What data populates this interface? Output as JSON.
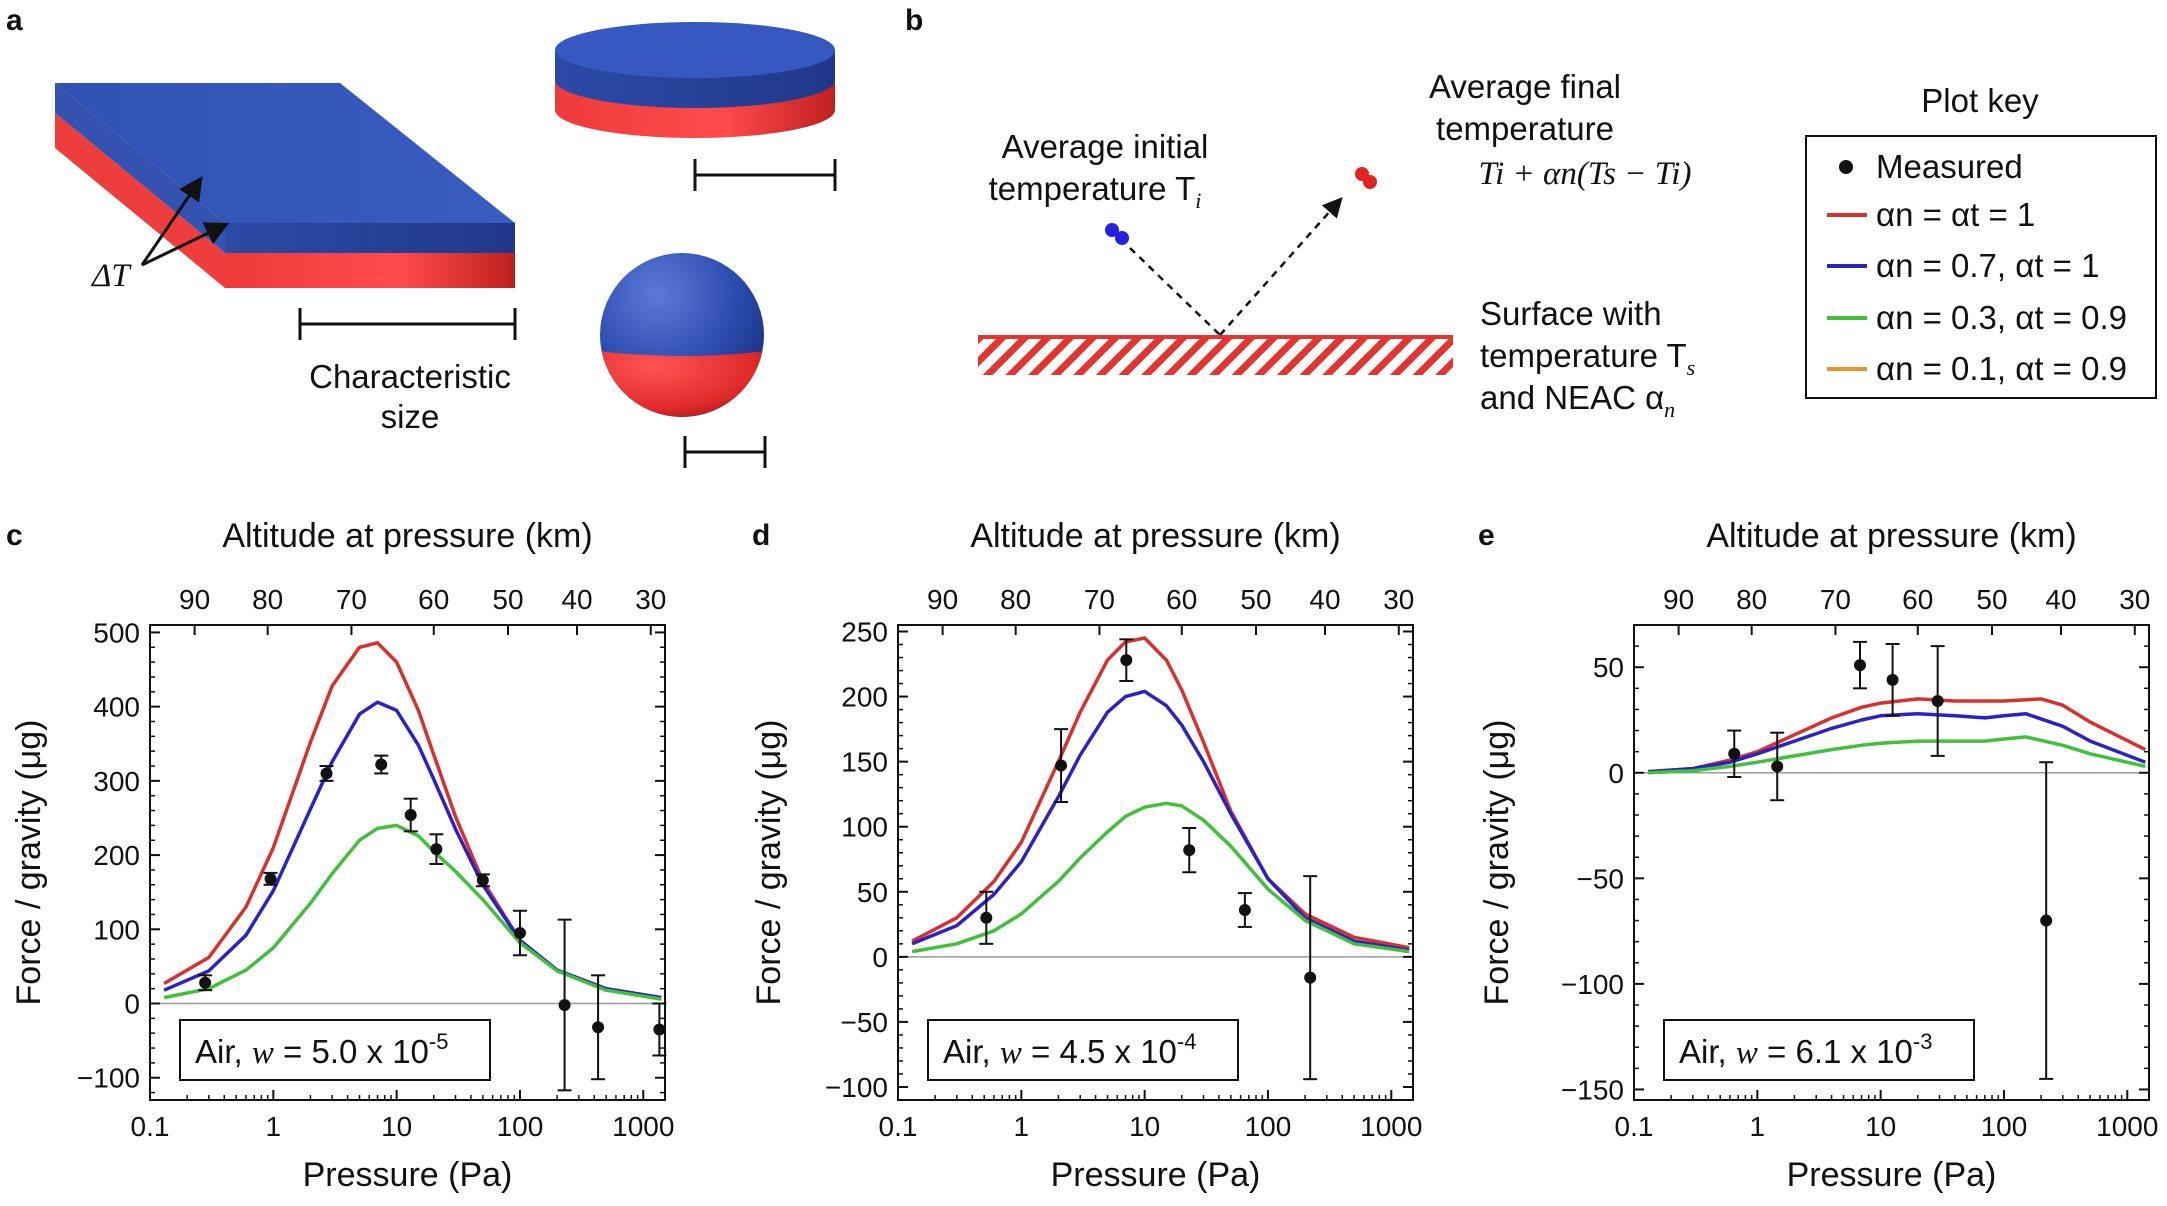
{
  "panels": {
    "a": {
      "letter": "a",
      "delta_label": "ΔT",
      "size_label_line1": "Characteristic",
      "size_label_line2": "size"
    },
    "b": {
      "letter": "b",
      "initial_line1": "Average initial",
      "initial_line2": "temperature T",
      "initial_sub": "i",
      "final_line1": "Average final",
      "final_line2": "temperature",
      "final_formula": "Ti + αn(Ts − Ti)",
      "surface_line1": "Surface with",
      "surface_line2": "temperature T",
      "surface_sub": "s",
      "surface_line3": "and NEAC α",
      "surface_sub3": "n"
    }
  },
  "legend": {
    "title": "Plot key",
    "items": [
      {
        "name": "Measured",
        "label": "Measured",
        "color": "#111111",
        "kind": "point"
      },
      {
        "name": "red",
        "label": "αn = αt = 1",
        "color": "#d9302b",
        "kind": "line"
      },
      {
        "name": "blue",
        "label": "αn = 0.7, αt = 1",
        "color": "#2a22c8",
        "kind": "line"
      },
      {
        "name": "green",
        "label": "αn = 0.3, αt = 0.9",
        "color": "#3fc13a",
        "kind": "line"
      },
      {
        "name": "orange",
        "label": "αn = 0.1, αt = 0.9",
        "color": "#e8952b",
        "kind": "line"
      }
    ]
  },
  "chart_data": [
    {
      "letter": "c",
      "type": "line",
      "x_scale": "log",
      "xlabel": "Pressure (Pa)",
      "ylabel": "Force / gravity (μg)",
      "top_xlabel": "Altitude at pressure (km)",
      "xlim": [
        0.1,
        1500
      ],
      "ylim": [
        -130,
        510
      ],
      "yticks": [
        -100,
        0,
        100,
        200,
        300,
        400,
        500
      ],
      "ytick_labels": [
        "−100",
        "0",
        "100",
        "200",
        "300",
        "400",
        "500"
      ],
      "xticks": [
        0.1,
        1,
        10,
        100,
        1000
      ],
      "xtick_labels": [
        "0.1",
        "1",
        "10",
        "100",
        "1000"
      ],
      "top_ticks": [
        {
          "p": 0.23,
          "label": "90"
        },
        {
          "p": 0.9,
          "label": "80"
        },
        {
          "p": 4.3,
          "label": "70"
        },
        {
          "p": 20,
          "label": "60"
        },
        {
          "p": 80,
          "label": "50"
        },
        {
          "p": 290,
          "label": "40"
        },
        {
          "p": 1150,
          "label": "30"
        }
      ],
      "annotation": {
        "prefix": "Air, ",
        "var": "w",
        "mid": " = 5.0 x 10",
        "exp": "-5"
      },
      "series": [
        {
          "name": "αn = αt = 1",
          "color": "#d9302b",
          "x": [
            0.13,
            0.3,
            0.6,
            1,
            2,
            3,
            5,
            7,
            10,
            15,
            20,
            30,
            50,
            100,
            200,
            500,
            1400
          ],
          "y": [
            27,
            62,
            130,
            210,
            352,
            428,
            480,
            486,
            460,
            395,
            335,
            252,
            165,
            85,
            45,
            20,
            8
          ]
        },
        {
          "name": "αn = 0.7, αt = 1",
          "color": "#2a22c8",
          "x": [
            0.13,
            0.3,
            0.6,
            1,
            2,
            3,
            5,
            7,
            10,
            15,
            20,
            30,
            50,
            100,
            200,
            500,
            1400
          ],
          "y": [
            18,
            44,
            92,
            152,
            262,
            326,
            390,
            406,
            395,
            348,
            302,
            235,
            160,
            85,
            45,
            20,
            8
          ]
        },
        {
          "name": "αn = 0.3, αt = 0.9",
          "color": "#3fc13a",
          "x": [
            0.13,
            0.3,
            0.6,
            1,
            2,
            3,
            5,
            7,
            10,
            15,
            20,
            30,
            50,
            100,
            200,
            500,
            1400
          ],
          "y": [
            8,
            20,
            45,
            75,
            135,
            175,
            220,
            236,
            240,
            226,
            205,
            178,
            140,
            82,
            44,
            18,
            6
          ]
        }
      ],
      "measured": {
        "x": [
          0.28,
          0.95,
          2.7,
          7.5,
          13,
          21,
          50,
          100,
          230,
          430,
          1350
        ],
        "y": [
          28,
          168,
          310,
          322,
          254,
          208,
          166,
          95,
          -2,
          -32,
          -35
        ],
        "err": [
          10,
          8,
          10,
          12,
          22,
          20,
          8,
          30,
          115,
          70,
          35
        ]
      }
    },
    {
      "letter": "d",
      "type": "line",
      "x_scale": "log",
      "xlabel": "Pressure (Pa)",
      "ylabel": "Force / gravity (μg)",
      "top_xlabel": "Altitude at pressure (km)",
      "xlim": [
        0.1,
        1500
      ],
      "ylim": [
        -110,
        255
      ],
      "yticks": [
        -100,
        -50,
        0,
        50,
        100,
        150,
        200,
        250
      ],
      "ytick_labels": [
        "−100",
        "−50",
        "0",
        "50",
        "100",
        "150",
        "200",
        "250"
      ],
      "xticks": [
        0.1,
        1,
        10,
        100,
        1000
      ],
      "xtick_labels": [
        "0.1",
        "1",
        "10",
        "100",
        "1000"
      ],
      "top_ticks": [
        {
          "p": 0.23,
          "label": "90"
        },
        {
          "p": 0.9,
          "label": "80"
        },
        {
          "p": 4.3,
          "label": "70"
        },
        {
          "p": 20,
          "label": "60"
        },
        {
          "p": 80,
          "label": "50"
        },
        {
          "p": 290,
          "label": "40"
        },
        {
          "p": 1150,
          "label": "30"
        }
      ],
      "annotation": {
        "prefix": "Air, ",
        "var": "w",
        "mid": " = 4.5 x 10",
        "exp": "-4"
      },
      "series": [
        {
          "name": "αn = αt = 1",
          "color": "#d9302b",
          "x": [
            0.13,
            0.3,
            0.6,
            1,
            2,
            3,
            5,
            7,
            10,
            15,
            20,
            30,
            50,
            100,
            200,
            500,
            1400
          ],
          "y": [
            12,
            30,
            58,
            88,
            150,
            188,
            228,
            242,
            245,
            228,
            205,
            165,
            112,
            60,
            33,
            15,
            7
          ]
        },
        {
          "name": "αn = 0.7, αt = 1",
          "color": "#2a22c8",
          "x": [
            0.13,
            0.3,
            0.6,
            1,
            2,
            3,
            5,
            7,
            10,
            15,
            20,
            30,
            50,
            100,
            200,
            500,
            1400
          ],
          "y": [
            10,
            24,
            48,
            73,
            123,
            155,
            188,
            200,
            204,
            193,
            178,
            150,
            110,
            60,
            30,
            12,
            5
          ]
        },
        {
          "name": "αn = 0.3, αt = 0.9",
          "color": "#3fc13a",
          "x": [
            0.13,
            0.3,
            0.6,
            1,
            2,
            3,
            5,
            7,
            10,
            15,
            20,
            30,
            50,
            100,
            200,
            500,
            1400
          ],
          "y": [
            4,
            10,
            20,
            33,
            58,
            76,
            96,
            108,
            115,
            118,
            116,
            105,
            85,
            52,
            28,
            10,
            4
          ]
        }
      ],
      "measured": {
        "x": [
          0.52,
          2.1,
          7.1,
          23,
          65,
          220
        ],
        "y": [
          30,
          147,
          228,
          82,
          36,
          -16
        ],
        "err": [
          20,
          28,
          16,
          17,
          13,
          78
        ]
      }
    },
    {
      "letter": "e",
      "type": "line",
      "x_scale": "log",
      "xlabel": "Pressure (Pa)",
      "ylabel": "Force / gravity (μg)",
      "top_xlabel": "Altitude at pressure (km)",
      "xlim": [
        0.1,
        1500
      ],
      "ylim": [
        -155,
        70
      ],
      "yticks": [
        -150,
        -100,
        -50,
        0,
        50
      ],
      "ytick_labels": [
        "−150",
        "−100",
        "−50",
        "0",
        "50"
      ],
      "xticks": [
        0.1,
        1,
        10,
        100,
        1000
      ],
      "xtick_labels": [
        "0.1",
        "1",
        "10",
        "100",
        "1000"
      ],
      "top_ticks": [
        {
          "p": 0.23,
          "label": "90"
        },
        {
          "p": 0.9,
          "label": "80"
        },
        {
          "p": 4.3,
          "label": "70"
        },
        {
          "p": 20,
          "label": "60"
        },
        {
          "p": 80,
          "label": "50"
        },
        {
          "p": 290,
          "label": "40"
        },
        {
          "p": 1150,
          "label": "30"
        }
      ],
      "annotation": {
        "prefix": "Air, ",
        "var": "w",
        "mid": " = 6.1 x 10",
        "exp": "-3"
      },
      "series": [
        {
          "name": "αn = αt = 1",
          "color": "#d9302b",
          "x": [
            0.13,
            0.3,
            0.6,
            1,
            2,
            4,
            7,
            10,
            20,
            40,
            70,
            100,
            200,
            300,
            500,
            1400
          ],
          "y": [
            0.5,
            2,
            6,
            10,
            18,
            26,
            31,
            33,
            35,
            34,
            34,
            34,
            35,
            32,
            24,
            11
          ]
        },
        {
          "name": "αn = 0.7, αt = 1",
          "color": "#2a22c8",
          "x": [
            0.13,
            0.3,
            0.6,
            1,
            2,
            4,
            7,
            10,
            20,
            40,
            70,
            100,
            150,
            300,
            500,
            1400
          ],
          "y": [
            0.5,
            2,
            5,
            9,
            15,
            21,
            25,
            27,
            28,
            27,
            26,
            27,
            28,
            22,
            15,
            5
          ]
        },
        {
          "name": "αn = 0.3, αt = 0.9",
          "color": "#3fc13a",
          "x": [
            0.13,
            0.3,
            0.6,
            1,
            2,
            4,
            7,
            10,
            20,
            40,
            70,
            100,
            150,
            300,
            500,
            1400
          ],
          "y": [
            0,
            1,
            3,
            5,
            8,
            11,
            13,
            14,
            15,
            15,
            15,
            16,
            17,
            13,
            9,
            3
          ]
        }
      ],
      "measured": {
        "x": [
          0.65,
          1.45,
          6.8,
          12.5,
          29,
          220
        ],
        "y": [
          9,
          3,
          51,
          44,
          34,
          -70
        ],
        "err": [
          11,
          16,
          11,
          17,
          26,
          75
        ]
      }
    }
  ]
}
